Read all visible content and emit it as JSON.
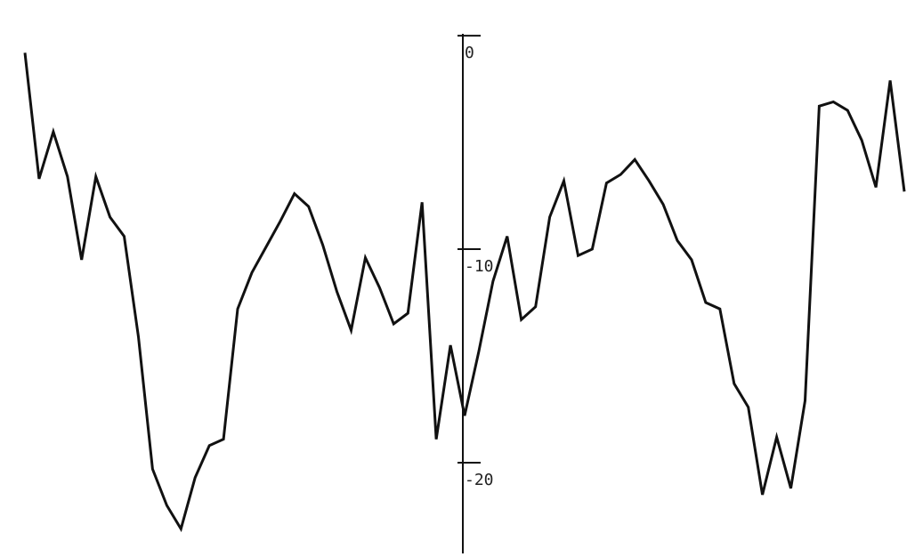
{
  "chart_data": {
    "type": "line",
    "values": [
      -0.8,
      -6.7,
      -4.5,
      -6.6,
      -10.5,
      -6.6,
      -8.5,
      -9.4,
      -14.1,
      -20.3,
      -22.0,
      -23.1,
      -20.7,
      -19.2,
      -18.9,
      -12.8,
      -11.1,
      -9.9,
      -8.7,
      -7.4,
      -8.0,
      -9.8,
      -12.0,
      -13.8,
      -10.4,
      -11.8,
      -13.5,
      -13.0,
      -7.8,
      -18.9,
      -14.5,
      -17.8,
      -14.8,
      -11.5,
      -9.4,
      -13.3,
      -12.7,
      -8.5,
      -6.8,
      -10.3,
      -10.0,
      -6.9,
      -6.5,
      -5.8,
      -6.8,
      -7.9,
      -9.6,
      -10.5,
      -12.5,
      -12.8,
      -16.3,
      -17.4,
      -21.5,
      -18.8,
      -21.2,
      -17.1,
      -3.3,
      -3.1,
      -3.5,
      -4.9,
      -7.1,
      -2.1,
      -7.3
    ],
    "color": "#111111",
    "ylim": [
      -24.25,
      1.67
    ],
    "yticks": [
      0,
      -10,
      -20
    ]
  }
}
